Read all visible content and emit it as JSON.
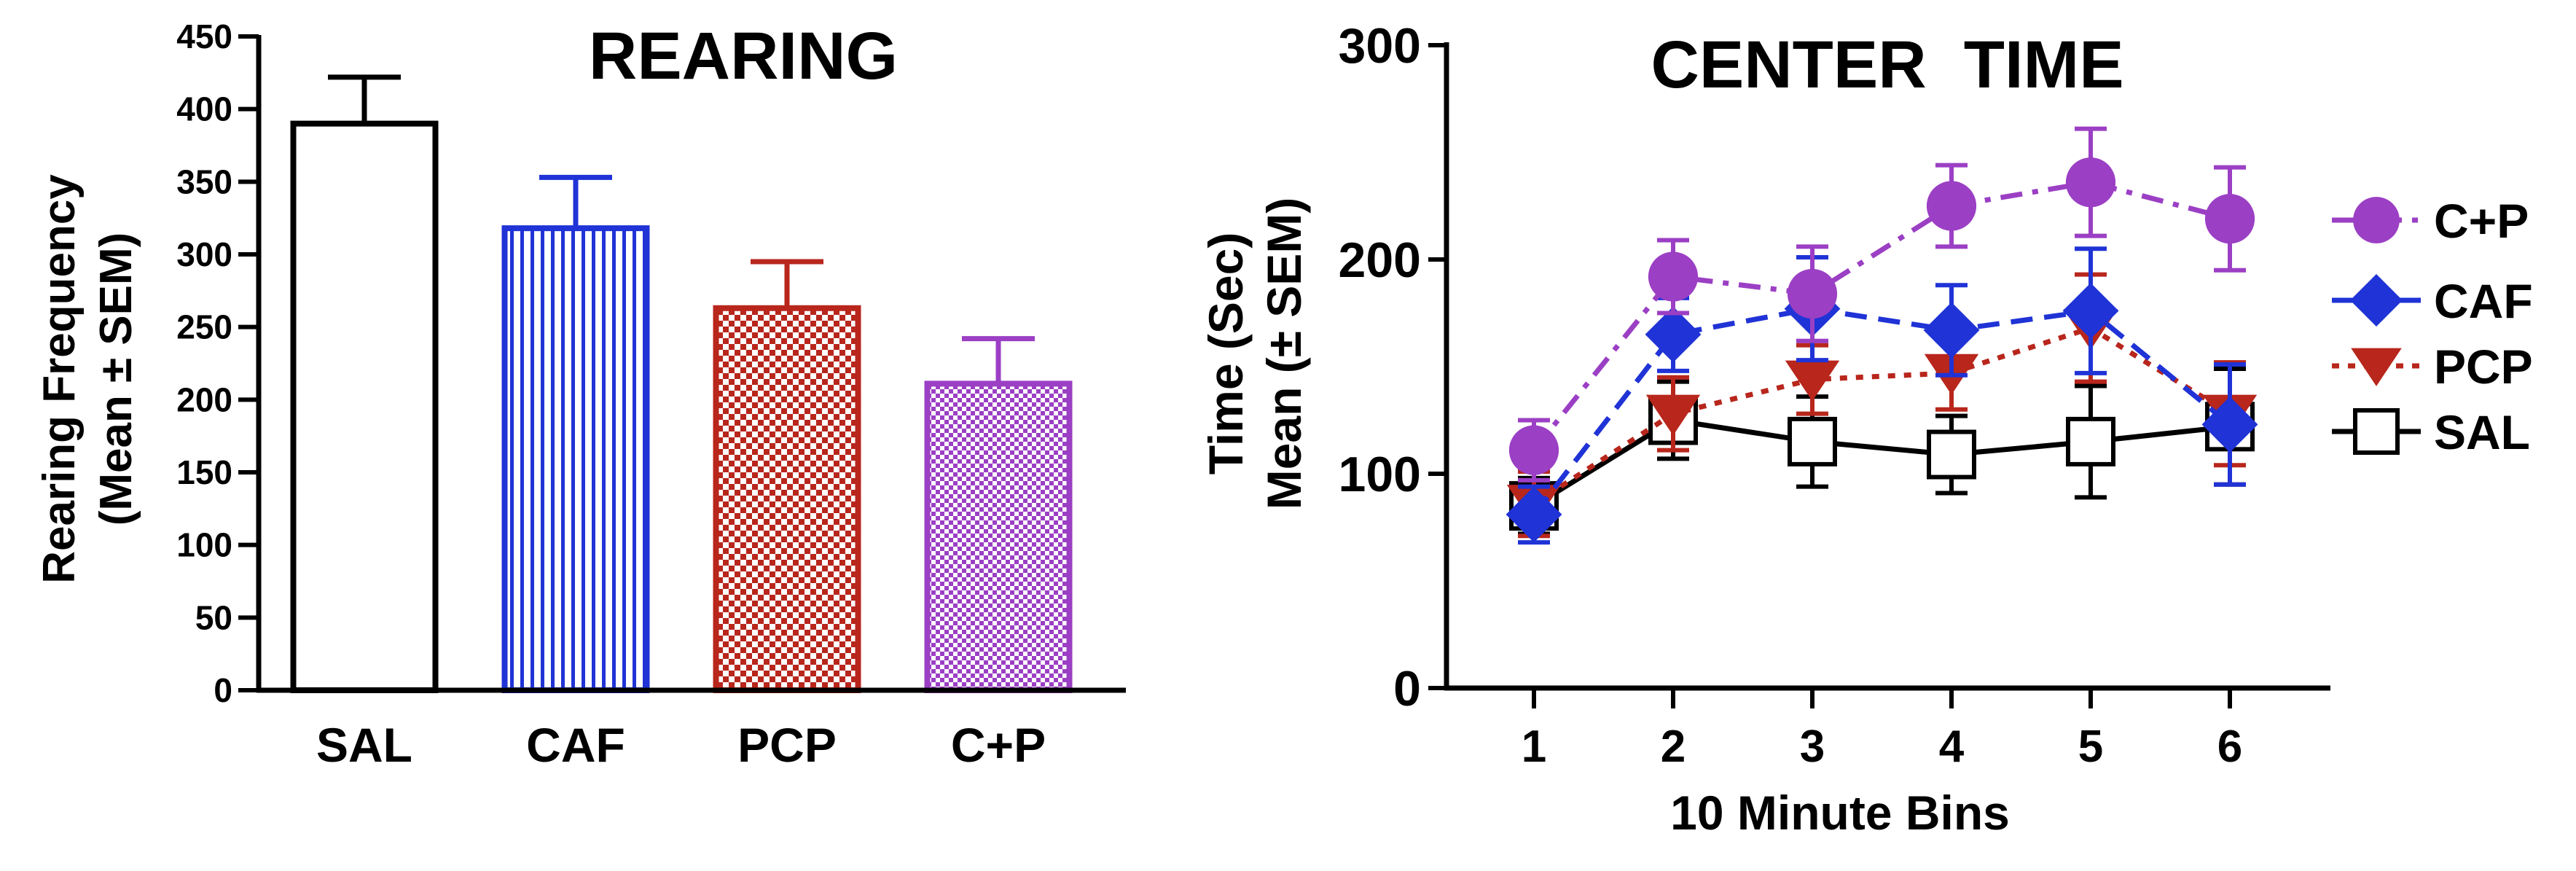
{
  "chart_data": [
    {
      "type": "bar",
      "title": "REARING",
      "ylabel_line1": "Rearing Frequency",
      "ylabel_line2": "(Mean ± SEM)",
      "xlabel": "",
      "ylim": [
        0,
        450
      ],
      "yticks": [
        0,
        50,
        100,
        150,
        200,
        250,
        300,
        350,
        400,
        450
      ],
      "categories": [
        "SAL",
        "CAF",
        "PCP",
        "C+P"
      ],
      "values": [
        390,
        318,
        263,
        211
      ],
      "errors": [
        32,
        35,
        32,
        31
      ],
      "fills": [
        "open",
        "vertical-stripes",
        "checker",
        "checker-fine"
      ],
      "colors": [
        "#000000",
        "#2033d6",
        "#b8261c",
        "#9b3fc4"
      ]
    },
    {
      "type": "line",
      "title": "CENTER  TIME",
      "ylabel_line1": "Time (Sec)",
      "ylabel_line2": "Mean (± SEM)",
      "xlabel": "10 Minute Bins",
      "ylim": [
        0,
        300
      ],
      "yticks": [
        0,
        100,
        200,
        300
      ],
      "x": [
        1,
        2,
        3,
        4,
        5,
        6
      ],
      "series": [
        {
          "name": "C+P",
          "color": "#9b3fc4",
          "marker": "circle",
          "dash": "dashdot",
          "values": [
            111,
            192,
            184,
            225,
            236,
            219
          ],
          "errors": [
            14,
            17,
            22,
            19,
            25,
            24
          ]
        },
        {
          "name": "CAF",
          "color": "#2033d6",
          "marker": "diamond",
          "dash": "dashed",
          "values": [
            81,
            165,
            177,
            167,
            176,
            123
          ],
          "errors": [
            13,
            17,
            24,
            21,
            29,
            28
          ]
        },
        {
          "name": "PCP",
          "color": "#b8261c",
          "marker": "triangle-down",
          "dash": "dotted",
          "values": [
            86,
            128,
            144,
            147,
            168,
            128
          ],
          "errors": [
            15,
            17,
            16,
            17,
            25,
            24
          ]
        },
        {
          "name": "SAL",
          "color": "#000000",
          "marker": "square-open",
          "dash": "solid",
          "values": [
            85,
            125,
            115,
            109,
            115,
            122
          ],
          "errors": [
            13,
            18,
            21,
            18,
            26,
            27
          ]
        }
      ]
    }
  ]
}
